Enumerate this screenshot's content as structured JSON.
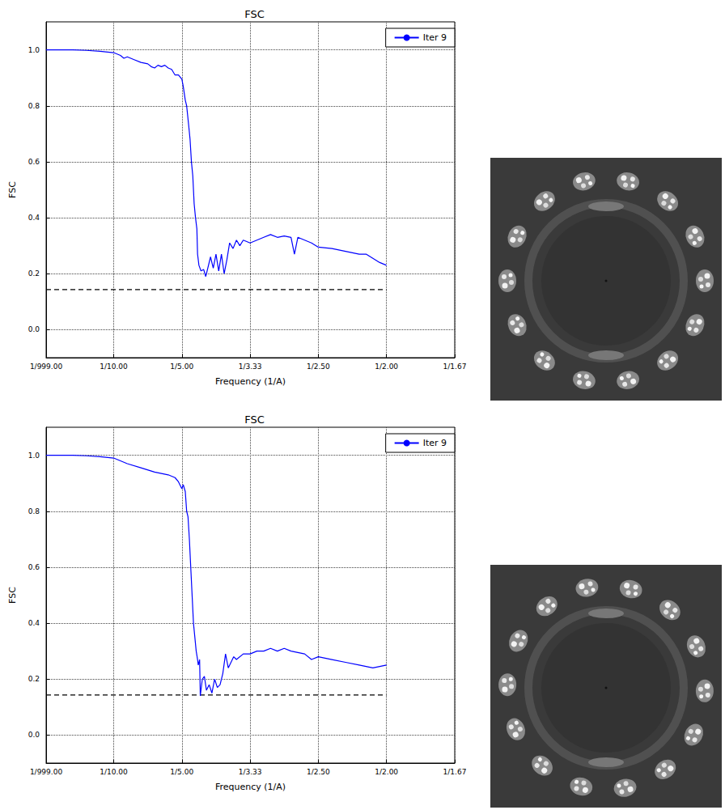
{
  "chart_data": [
    {
      "type": "line",
      "title": "FSC",
      "x_label": "Frequency (1/A)",
      "y_label": "FSC",
      "x": [
        0.001,
        0.02,
        0.04,
        0.06,
        0.08,
        0.1,
        0.11,
        0.115,
        0.12,
        0.13,
        0.14,
        0.15,
        0.155,
        0.16,
        0.165,
        0.17,
        0.175,
        0.18,
        0.185,
        0.19,
        0.195,
        0.2,
        0.202,
        0.205,
        0.207,
        0.21,
        0.212,
        0.214,
        0.216,
        0.218,
        0.22,
        0.222,
        0.223,
        0.225,
        0.228,
        0.232,
        0.235,
        0.238,
        0.242,
        0.246,
        0.25,
        0.254,
        0.258,
        0.262,
        0.266,
        0.27,
        0.275,
        0.28,
        0.285,
        0.29,
        0.3,
        0.31,
        0.32,
        0.33,
        0.34,
        0.35,
        0.36,
        0.365,
        0.37,
        0.38,
        0.39,
        0.4,
        0.42,
        0.44,
        0.46,
        0.47,
        0.48,
        0.49,
        0.5
      ],
      "series": [
        {
          "name": "Iter 9",
          "color": "#0000ff",
          "values": [
            1.0,
            1.0,
            1.0,
            0.998,
            0.995,
            0.99,
            0.98,
            0.97,
            0.975,
            0.965,
            0.955,
            0.95,
            0.94,
            0.935,
            0.945,
            0.94,
            0.945,
            0.935,
            0.93,
            0.91,
            0.91,
            0.895,
            0.87,
            0.82,
            0.8,
            0.73,
            0.68,
            0.6,
            0.55,
            0.45,
            0.4,
            0.36,
            0.27,
            0.23,
            0.21,
            0.215,
            0.19,
            0.22,
            0.26,
            0.22,
            0.27,
            0.21,
            0.27,
            0.2,
            0.25,
            0.31,
            0.29,
            0.32,
            0.3,
            0.32,
            0.31,
            0.32,
            0.33,
            0.34,
            0.33,
            0.335,
            0.33,
            0.27,
            0.33,
            0.32,
            0.31,
            0.295,
            0.29,
            0.28,
            0.27,
            0.27,
            0.255,
            0.24,
            0.23
          ]
        }
      ],
      "threshold": 0.143,
      "xlim": [
        0.001,
        0.6
      ],
      "xticks": [
        {
          "value": 0.001,
          "label": "1/999.00"
        },
        {
          "value": 0.1,
          "label": "1/10.00"
        },
        {
          "value": 0.2,
          "label": "1/5.00"
        },
        {
          "value": 0.3,
          "label": "1/3.33"
        },
        {
          "value": 0.4,
          "label": "1/2.50"
        },
        {
          "value": 0.5,
          "label": "1/2.00"
        },
        {
          "value": 0.6,
          "label": "1/1.67"
        }
      ],
      "ylim": [
        -0.1,
        1.1
      ],
      "yticks": [
        {
          "value": 0,
          "label": "0.0"
        },
        0.2,
        0.4,
        0.6,
        0.8,
        {
          "value": 1,
          "label": "1.0"
        }
      ],
      "grid": true,
      "legend": "upper right"
    },
    {
      "type": "line",
      "title": "FSC",
      "x_label": "Frequency (1/A)",
      "y_label": "FSC",
      "x": [
        0.001,
        0.02,
        0.04,
        0.06,
        0.08,
        0.1,
        0.12,
        0.14,
        0.16,
        0.18,
        0.19,
        0.195,
        0.2,
        0.202,
        0.205,
        0.207,
        0.209,
        0.211,
        0.213,
        0.215,
        0.217,
        0.219,
        0.221,
        0.223,
        0.224,
        0.226,
        0.227,
        0.23,
        0.233,
        0.236,
        0.24,
        0.244,
        0.248,
        0.252,
        0.256,
        0.26,
        0.264,
        0.268,
        0.272,
        0.276,
        0.28,
        0.29,
        0.3,
        0.31,
        0.32,
        0.33,
        0.34,
        0.35,
        0.36,
        0.37,
        0.38,
        0.39,
        0.4,
        0.42,
        0.44,
        0.46,
        0.48,
        0.5
      ],
      "series": [
        {
          "name": "Iter 9",
          "color": "#0000ff",
          "values": [
            1.0,
            1.0,
            1.0,
            0.998,
            0.995,
            0.99,
            0.97,
            0.955,
            0.94,
            0.93,
            0.92,
            0.905,
            0.88,
            0.895,
            0.87,
            0.8,
            0.78,
            0.7,
            0.6,
            0.5,
            0.4,
            0.35,
            0.3,
            0.27,
            0.25,
            0.27,
            0.14,
            0.2,
            0.21,
            0.16,
            0.18,
            0.15,
            0.2,
            0.17,
            0.18,
            0.22,
            0.29,
            0.24,
            0.26,
            0.28,
            0.27,
            0.29,
            0.29,
            0.3,
            0.3,
            0.31,
            0.3,
            0.31,
            0.3,
            0.295,
            0.29,
            0.27,
            0.28,
            0.27,
            0.26,
            0.25,
            0.24,
            0.25
          ]
        }
      ],
      "threshold": 0.143,
      "xlim": [
        0.001,
        0.6
      ],
      "xticks": [
        {
          "value": 0.001,
          "label": "1/999.00"
        },
        {
          "value": 0.1,
          "label": "1/10.00"
        },
        {
          "value": 0.2,
          "label": "1/5.00"
        },
        {
          "value": 0.3,
          "label": "1/3.33"
        },
        {
          "value": 0.4,
          "label": "1/2.50"
        },
        {
          "value": 0.5,
          "label": "1/2.00"
        },
        {
          "value": 0.6,
          "label": "1/1.67"
        }
      ],
      "ylim": [
        -0.1,
        1.1
      ],
      "yticks": [
        {
          "value": 0,
          "label": "0.0"
        },
        0.2,
        0.4,
        0.6,
        0.8,
        {
          "value": 1,
          "label": "1.0"
        }
      ],
      "grid": true,
      "legend": "upper right"
    }
  ]
}
